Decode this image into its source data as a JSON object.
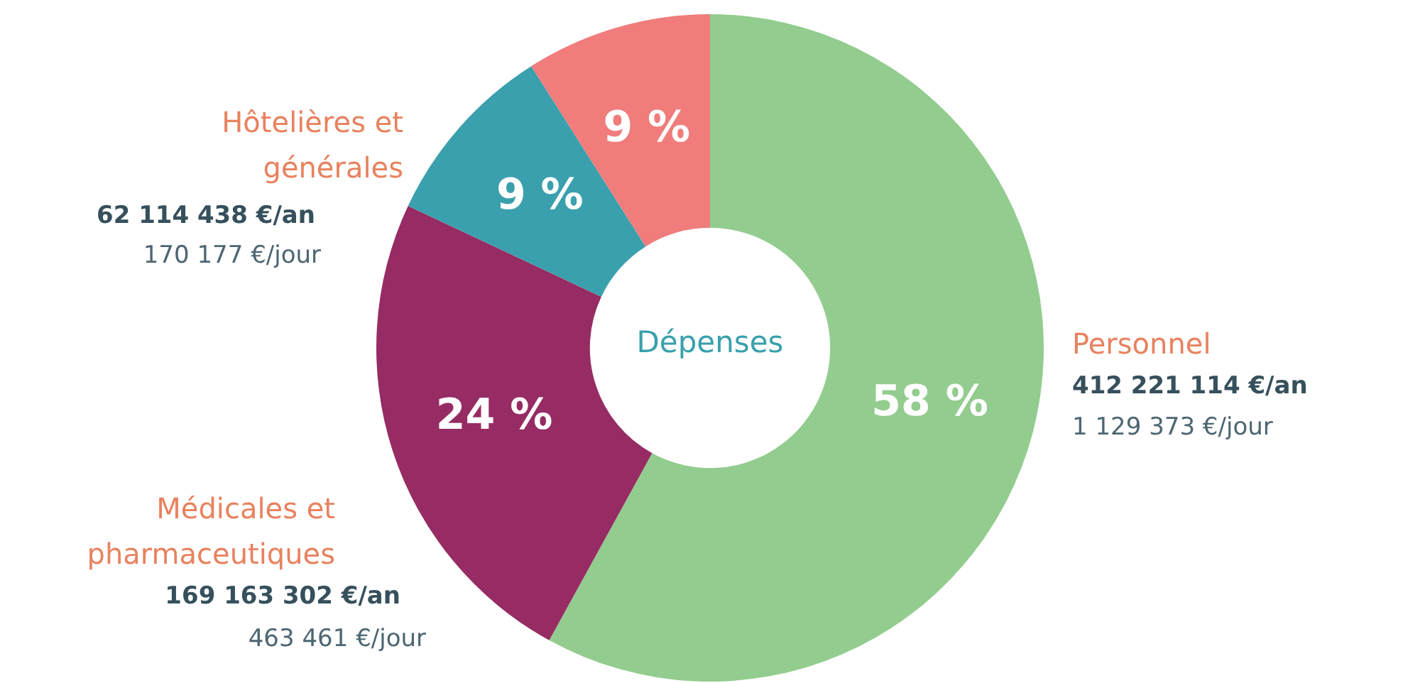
{
  "chart_data": {
    "type": "donut",
    "categories": [
      "Personnel",
      "Médicales et pharmaceutiques",
      "Hôtelières et générales",
      null
    ],
    "values": [
      58,
      24,
      9,
      9
    ],
    "colors": [
      "#93cc8f",
      "#962c63",
      "#3aa0ad",
      "#f07c7c"
    ],
    "value_labels": [
      "58 %",
      "24 %",
      "9 %",
      "9 %"
    ],
    "legend": false,
    "annotations": [
      "Dépenses",
      "412 221 114 €/an",
      "1 129 373 €/jour",
      "169 163 302 €/an",
      "463 461 €/jour",
      "62 114 438 €/an",
      "170 177 €/jour"
    ]
  }
}
